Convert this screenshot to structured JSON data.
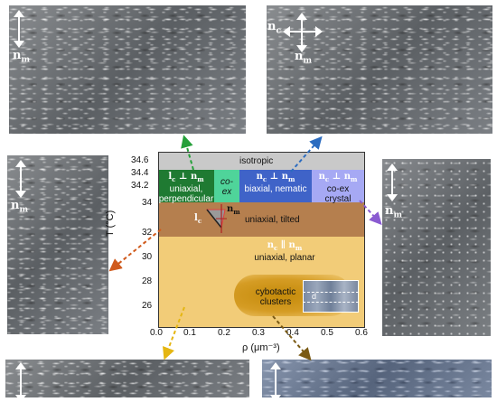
{
  "micrographs": {
    "top_left": {
      "label": "n",
      "sub": "m"
    },
    "top_right": {
      "label_c": "n",
      "sub_c": "c",
      "label_m": "n",
      "sub_m": "m"
    },
    "mid_left": {
      "label": "n",
      "sub": "m"
    },
    "mid_right": {
      "label": "n",
      "sub": "m"
    }
  },
  "diagram": {
    "isotropic": "isotropic",
    "perp_head_a": "l",
    "perp_head_a_sub": "c",
    "perp_head_sym": " ⊥ ",
    "perp_head_b": "n",
    "perp_head_b_sub": "m",
    "perp_l1": "uniaxial,",
    "perp_l2": "perpendicular",
    "coex1_l1": "co-",
    "coex1_l2": "ex",
    "nem_head_a": "n",
    "nem_head_a_sub": "c",
    "nem_head_sym": " ⊥ ",
    "nem_head_b": "n",
    "nem_head_b_sub": "m",
    "nem_body": "biaxial, nematic",
    "cry_head_a": "n",
    "cry_head_a_sub": "c",
    "cry_head_sym": " ⊥ ",
    "cry_head_b": "n",
    "cry_head_b_sub": "m",
    "cry_l1": "co-ex",
    "cry_l2": "crystal",
    "tilted": "uniaxial, tilted",
    "tilt_lc": "l",
    "tilt_lc_sub": "c",
    "tilt_nm": "n",
    "tilt_nm_sub": "m",
    "planar_head_a": "n",
    "planar_head_a_sub": "c",
    "planar_head_sym": " ∥ ",
    "planar_head_b": "n",
    "planar_head_b_sub": "m",
    "planar_body": "uniaxial, planar",
    "cyb_l1": "cybotactic",
    "cyb_l2": "clusters",
    "inset_d": "d"
  },
  "axes": {
    "ylabel": "T (°C)",
    "xlabel": "ρ (μm⁻³)",
    "yticks": [
      "34.6",
      "34.4",
      "34.2",
      "34",
      "32",
      "30",
      "28",
      "26"
    ],
    "xticks": [
      "0.0",
      "0.1",
      "0.2",
      "0.3",
      "0.4",
      "0.5",
      "0.6"
    ]
  },
  "colors": {
    "isotropic": "#c9c9c9",
    "perpendicular": "#1f7a32",
    "coex_green": "#4fd49a",
    "nematic": "#3f63c8",
    "crystal": "#a6a9f4",
    "tilted": "#b57f4e",
    "planar": "#f2cc78",
    "cybotactic": "#c98f0f",
    "arrow_green": "#25a03a",
    "arrow_blue": "#2b6cc0",
    "arrow_purple": "#8a5bd1",
    "arrow_orange": "#d05a1c",
    "arrow_yellow": "#e5b612",
    "arrow_brown": "#7a5a14"
  }
}
